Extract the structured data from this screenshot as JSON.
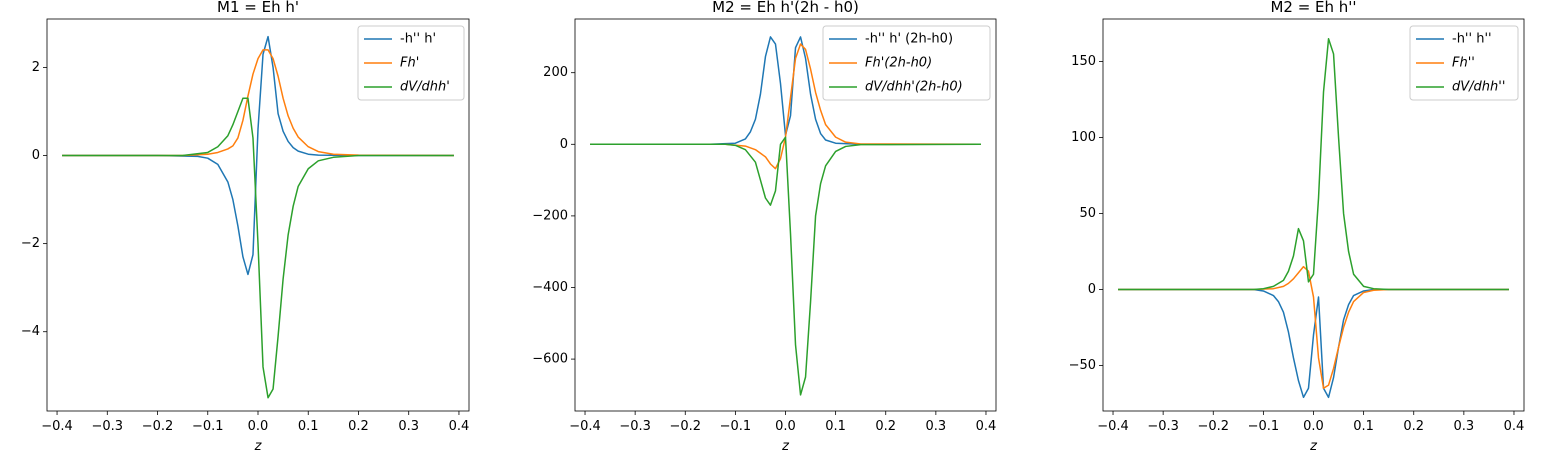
{
  "chart_data": [
    {
      "type": "line",
      "title": "M1 = Eh h'",
      "xlabel": "z",
      "ylabel": "",
      "xlim": [
        -0.42,
        0.42
      ],
      "ylim": [
        -5.8,
        3.1
      ],
      "xticks": [
        -0.4,
        -0.3,
        -0.2,
        -0.1,
        0.0,
        0.1,
        0.2,
        0.3,
        0.4
      ],
      "xtick_labels": [
        "−0.4",
        "−0.3",
        "−0.2",
        "−0.1",
        "0.0",
        "0.1",
        "0.2",
        "0.3",
        "0.4"
      ],
      "yticks": [
        -4,
        -2,
        0,
        2
      ],
      "ytick_labels": [
        "−4",
        "−2",
        "0",
        "2"
      ],
      "grid": false,
      "legend_position": "top-right",
      "series": [
        {
          "name": "-h'' h'",
          "color": "#1f77b4",
          "x": [
            -0.39,
            -0.2,
            -0.12,
            -0.1,
            -0.08,
            -0.06,
            -0.05,
            -0.04,
            -0.03,
            -0.02,
            -0.01,
            0.0,
            0.01,
            0.02,
            0.03,
            0.04,
            0.05,
            0.06,
            0.07,
            0.08,
            0.1,
            0.12,
            0.2,
            0.39
          ],
          "y": [
            0,
            0,
            -0.02,
            -0.06,
            -0.2,
            -0.6,
            -1.0,
            -1.6,
            -2.3,
            -2.7,
            -2.25,
            0.6,
            2.3,
            2.7,
            2.0,
            0.95,
            0.55,
            0.32,
            0.18,
            0.1,
            0.03,
            0.01,
            0,
            0
          ]
        },
        {
          "name": "Fh'",
          "latex": true,
          "color": "#ff7f0e",
          "x": [
            -0.39,
            -0.15,
            -0.1,
            -0.08,
            -0.06,
            -0.05,
            -0.04,
            -0.03,
            -0.02,
            -0.01,
            0.0,
            0.01,
            0.02,
            0.03,
            0.04,
            0.05,
            0.06,
            0.07,
            0.08,
            0.1,
            0.12,
            0.15,
            0.2,
            0.39
          ],
          "y": [
            0,
            0,
            0.03,
            0.07,
            0.15,
            0.22,
            0.4,
            0.8,
            1.35,
            1.85,
            2.2,
            2.4,
            2.4,
            2.2,
            1.8,
            1.3,
            0.9,
            0.62,
            0.42,
            0.2,
            0.09,
            0.03,
            0.01,
            0
          ]
        },
        {
          "name": "dV/dhh'",
          "latex": true,
          "color": "#2ca02c",
          "x": [
            -0.39,
            -0.15,
            -0.1,
            -0.08,
            -0.06,
            -0.05,
            -0.04,
            -0.03,
            -0.02,
            -0.01,
            0.0,
            0.01,
            0.02,
            0.03,
            0.04,
            0.05,
            0.06,
            0.07,
            0.08,
            0.1,
            0.12,
            0.15,
            0.2,
            0.39
          ],
          "y": [
            0,
            0,
            0.07,
            0.2,
            0.45,
            0.7,
            1.0,
            1.3,
            1.3,
            0.4,
            -2.0,
            -4.8,
            -5.5,
            -5.3,
            -4.1,
            -2.8,
            -1.8,
            -1.15,
            -0.7,
            -0.3,
            -0.12,
            -0.04,
            0,
            0
          ]
        }
      ]
    },
    {
      "type": "line",
      "title": "M2 = Eh h'(2h - h0)",
      "xlabel": "z",
      "ylabel": "",
      "xlim": [
        -0.42,
        0.42
      ],
      "ylim": [
        -745,
        350
      ],
      "xticks": [
        -0.4,
        -0.3,
        -0.2,
        -0.1,
        0.0,
        0.1,
        0.2,
        0.3,
        0.4
      ],
      "xtick_labels": [
        "−0.4",
        "−0.3",
        "−0.2",
        "−0.1",
        "0.0",
        "0.1",
        "0.2",
        "0.3",
        "0.4"
      ],
      "yticks": [
        -600,
        -400,
        -200,
        0,
        200
      ],
      "ytick_labels": [
        "−600",
        "−400",
        "−200",
        "0",
        "200"
      ],
      "grid": false,
      "legend_position": "top-right",
      "series": [
        {
          "name": "-h'' h' (2h-h0)",
          "color": "#1f77b4",
          "x": [
            -0.39,
            -0.15,
            -0.1,
            -0.08,
            -0.07,
            -0.06,
            -0.05,
            -0.04,
            -0.03,
            -0.02,
            -0.01,
            0.0,
            0.01,
            0.02,
            0.03,
            0.04,
            0.05,
            0.06,
            0.07,
            0.08,
            0.1,
            0.15,
            0.39
          ],
          "y": [
            0,
            0,
            3,
            15,
            35,
            70,
            140,
            245,
            300,
            280,
            170,
            25,
            80,
            270,
            300,
            240,
            140,
            70,
            30,
            12,
            3,
            0,
            0
          ]
        },
        {
          "name": "Fh'(2h-h0)",
          "latex": true,
          "color": "#ff7f0e",
          "x": [
            -0.39,
            -0.12,
            -0.08,
            -0.06,
            -0.04,
            -0.03,
            -0.02,
            -0.01,
            0.0,
            0.01,
            0.02,
            0.03,
            0.04,
            0.05,
            0.06,
            0.07,
            0.08,
            0.1,
            0.12,
            0.15,
            0.39
          ],
          "y": [
            0,
            0,
            -5,
            -15,
            -35,
            -55,
            -68,
            -40,
            20,
            130,
            240,
            280,
            265,
            210,
            145,
            95,
            55,
            20,
            6,
            1,
            0
          ]
        },
        {
          "name": "dV/dhh'(2h-h0)",
          "latex": true,
          "color": "#2ca02c",
          "x": [
            -0.39,
            -0.12,
            -0.1,
            -0.08,
            -0.06,
            -0.05,
            -0.04,
            -0.03,
            -0.02,
            -0.01,
            0.0,
            0.01,
            0.02,
            0.03,
            0.04,
            0.05,
            0.06,
            0.07,
            0.08,
            0.1,
            0.12,
            0.15,
            0.39
          ],
          "y": [
            0,
            0,
            -3,
            -15,
            -50,
            -100,
            -150,
            -170,
            -130,
            0,
            20,
            -250,
            -560,
            -700,
            -650,
            -440,
            -200,
            -110,
            -60,
            -20,
            -6,
            -1,
            0
          ]
        }
      ]
    },
    {
      "type": "line",
      "title": "M2 = Eh h''",
      "xlabel": "z",
      "ylabel": "",
      "xlim": [
        -0.42,
        0.42
      ],
      "ylim": [
        -80,
        178
      ],
      "xticks": [
        -0.4,
        -0.3,
        -0.2,
        -0.1,
        0.0,
        0.1,
        0.2,
        0.3,
        0.4
      ],
      "xtick_labels": [
        "−0.4",
        "−0.3",
        "−0.2",
        "−0.1",
        "0.0",
        "0.1",
        "0.2",
        "0.3",
        "0.4"
      ],
      "yticks": [
        -50,
        0,
        50,
        100,
        150
      ],
      "ytick_labels": [
        "−50",
        "0",
        "50",
        "100",
        "150"
      ],
      "grid": false,
      "legend_position": "top-right",
      "series": [
        {
          "name": "-h'' h''",
          "color": "#1f77b4",
          "x": [
            -0.39,
            -0.12,
            -0.1,
            -0.08,
            -0.07,
            -0.06,
            -0.05,
            -0.04,
            -0.03,
            -0.02,
            -0.01,
            0.0,
            0.01,
            0.02,
            0.03,
            0.04,
            0.05,
            0.06,
            0.07,
            0.08,
            0.1,
            0.12,
            0.39
          ],
          "y": [
            0,
            0,
            -1,
            -4,
            -8,
            -15,
            -28,
            -45,
            -60,
            -71,
            -65,
            -30,
            -5,
            -65,
            -71,
            -58,
            -38,
            -20,
            -10,
            -4,
            -1,
            0,
            0
          ]
        },
        {
          "name": "Fh''",
          "latex": true,
          "color": "#ff7f0e",
          "x": [
            -0.39,
            -0.12,
            -0.08,
            -0.06,
            -0.05,
            -0.04,
            -0.03,
            -0.02,
            -0.01,
            0.0,
            0.01,
            0.02,
            0.03,
            0.04,
            0.05,
            0.06,
            0.07,
            0.08,
            0.1,
            0.12,
            0.15,
            0.39
          ],
          "y": [
            0,
            0,
            0.5,
            2,
            4,
            7,
            11,
            15,
            12,
            -5,
            -45,
            -65,
            -63,
            -52,
            -38,
            -25,
            -15,
            -8,
            -2,
            -0.5,
            0,
            0
          ]
        },
        {
          "name": "dV/dhh''",
          "latex": true,
          "color": "#2ca02c",
          "x": [
            -0.39,
            -0.12,
            -0.1,
            -0.08,
            -0.06,
            -0.05,
            -0.04,
            -0.03,
            -0.02,
            -0.01,
            0.0,
            0.01,
            0.02,
            0.03,
            0.04,
            0.05,
            0.06,
            0.07,
            0.08,
            0.1,
            0.12,
            0.15,
            0.39
          ],
          "y": [
            0,
            0,
            0.5,
            2,
            6,
            12,
            22,
            40,
            32,
            5,
            10,
            60,
            130,
            165,
            155,
            100,
            50,
            25,
            10,
            2,
            0.5,
            0,
            0
          ]
        }
      ]
    }
  ]
}
